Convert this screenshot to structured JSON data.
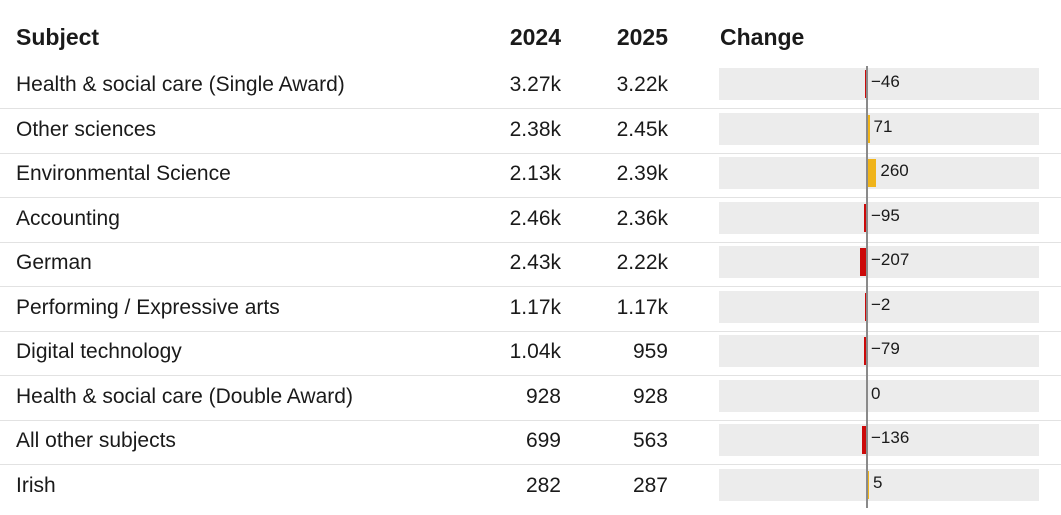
{
  "table": {
    "headers": {
      "subject": "Subject",
      "y2024": "2024",
      "y2025": "2025",
      "change": "Change"
    }
  },
  "colors": {
    "negative": "#cc0a0a",
    "positive": "#f0b41a",
    "track": "#ececec"
  },
  "chart_data": {
    "type": "table",
    "columns": [
      "Subject",
      "2024",
      "2025",
      "Change"
    ],
    "rows": [
      {
        "subject": "Health & social care (Single Award)",
        "v2024": "3.27k",
        "v2025": "3.22k",
        "change": -46,
        "change_label": "−46"
      },
      {
        "subject": "Other sciences",
        "v2024": "2.38k",
        "v2025": "2.45k",
        "change": 71,
        "change_label": "71"
      },
      {
        "subject": "Environmental Science",
        "v2024": "2.13k",
        "v2025": "2.39k",
        "change": 260,
        "change_label": "260"
      },
      {
        "subject": "Accounting",
        "v2024": "2.46k",
        "v2025": "2.36k",
        "change": -95,
        "change_label": "−95"
      },
      {
        "subject": "German",
        "v2024": "2.43k",
        "v2025": "2.22k",
        "change": -207,
        "change_label": "−207"
      },
      {
        "subject": "Performing / Expressive arts",
        "v2024": "1.17k",
        "v2025": "1.17k",
        "change": -2,
        "change_label": "−2"
      },
      {
        "subject": "Digital technology",
        "v2024": "1.04k",
        "v2025": "959",
        "change": -79,
        "change_label": "−79"
      },
      {
        "subject": "Health & social care (Double Award)",
        "v2024": "928",
        "v2025": "928",
        "change": 0,
        "change_label": "0"
      },
      {
        "subject": "All other subjects",
        "v2024": "699",
        "v2025": "563",
        "change": -136,
        "change_label": "−136"
      },
      {
        "subject": "Irish",
        "v2024": "282",
        "v2025": "287",
        "change": 5,
        "change_label": "5"
      }
    ]
  }
}
